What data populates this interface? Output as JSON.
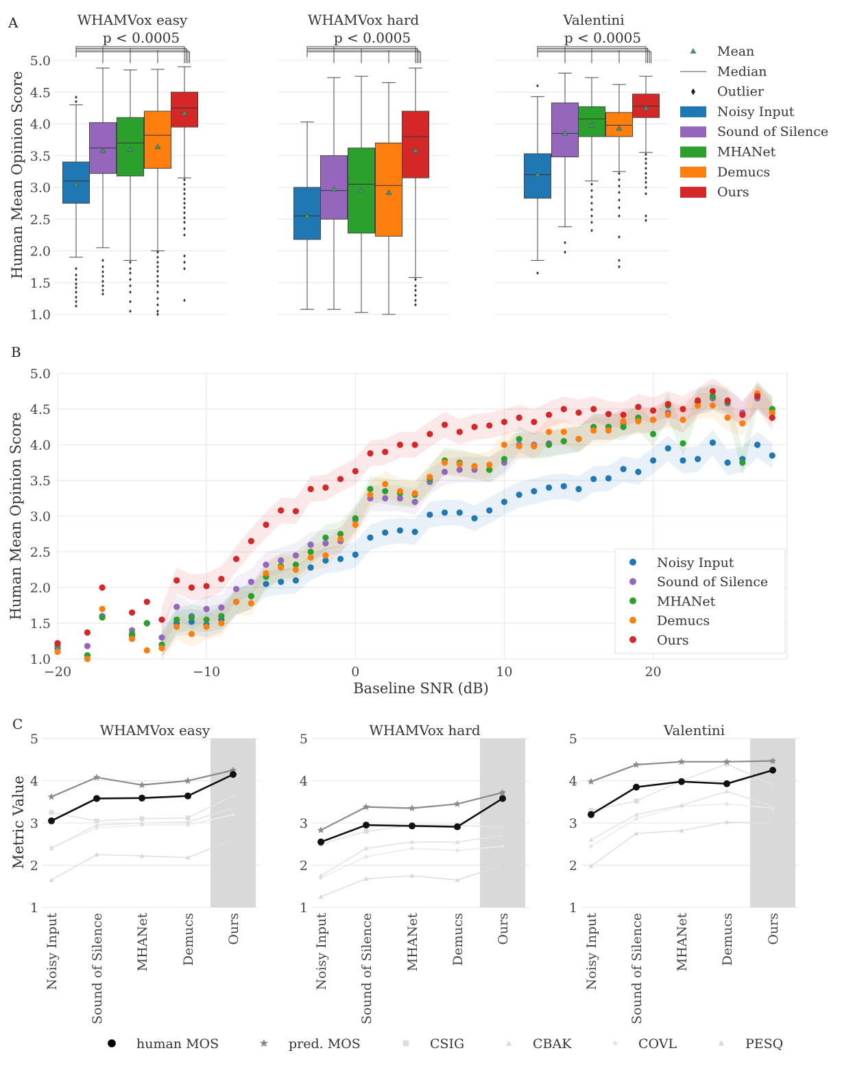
{
  "panels": {
    "A": "A",
    "B": "B",
    "C": "C"
  },
  "colors": {
    "Noisy Input": "#1f77b4",
    "Sound of Silence": "#9467bd",
    "MHANet": "#2ca02c",
    "Demucs": "#ff7f0e",
    "Ours": "#d62728"
  },
  "chart_data": [
    {
      "id": "A",
      "type": "box",
      "ylabel": "Human Mean Opinion Score",
      "ylim": [
        1.0,
        5.0
      ],
      "yticks": [
        "1.0",
        "1.5",
        "2.0",
        "2.5",
        "3.0",
        "3.5",
        "4.0",
        "4.5",
        "5.0"
      ],
      "methods": [
        "Noisy Input",
        "Sound of Silence",
        "MHANet",
        "Demucs",
        "Ours"
      ],
      "significance": "p < 0.0005",
      "legend": [
        "Mean",
        "Median",
        "Outlier",
        "Noisy Input",
        "Sound of Silence",
        "MHANet",
        "Demucs",
        "Ours"
      ],
      "subplots": [
        {
          "title": "WHAMVox easy",
          "boxes": [
            {
              "q1": 2.75,
              "median": 3.1,
              "q3": 3.4,
              "wlo": 1.9,
              "whi": 4.3,
              "mean": 3.05,
              "outliers": [
                4.42,
                4.35,
                1.72,
                1.62,
                1.55,
                1.48,
                1.42,
                1.35,
                1.27,
                1.2,
                1.13
              ]
            },
            {
              "q1": 3.22,
              "median": 3.62,
              "q3": 4.02,
              "wlo": 2.05,
              "whi": 4.88,
              "mean": 3.58,
              "outliers": [
                1.85,
                1.75,
                1.67,
                1.6,
                1.52,
                1.45,
                1.38,
                1.32
              ]
            },
            {
              "q1": 3.18,
              "median": 3.7,
              "q3": 4.1,
              "wlo": 1.85,
              "whi": 4.85,
              "mean": 3.6,
              "outliers": [
                1.82,
                1.72,
                1.65,
                1.55,
                1.45,
                1.35,
                1.2,
                1.05
              ]
            },
            {
              "q1": 3.3,
              "median": 3.82,
              "q3": 4.2,
              "wlo": 2.0,
              "whi": 4.86,
              "mean": 3.64,
              "outliers": [
                1.98,
                1.9,
                1.82,
                1.75,
                1.68,
                1.6,
                1.52,
                1.45,
                1.35,
                1.25,
                1.15,
                1.05,
                1.0
              ]
            },
            {
              "q1": 3.95,
              "median": 4.25,
              "q3": 4.5,
              "wlo": 3.15,
              "whi": 4.9,
              "mean": 4.17,
              "outliers": [
                3.12,
                3.05,
                2.97,
                2.9,
                2.82,
                2.75,
                2.68,
                2.6,
                2.52,
                2.45,
                2.35,
                2.25,
                1.92,
                1.82,
                1.72,
                1.22
              ]
            }
          ]
        },
        {
          "title": "WHAMVox hard",
          "boxes": [
            {
              "q1": 2.18,
              "median": 2.55,
              "q3": 3.0,
              "wlo": 1.08,
              "whi": 4.03,
              "mean": 2.55,
              "outliers": []
            },
            {
              "q1": 2.5,
              "median": 2.95,
              "q3": 3.5,
              "wlo": 1.08,
              "whi": 4.73,
              "mean": 2.97,
              "outliers": []
            },
            {
              "q1": 2.28,
              "median": 3.05,
              "q3": 3.62,
              "wlo": 1.03,
              "whi": 4.75,
              "mean": 2.95,
              "outliers": []
            },
            {
              "q1": 2.23,
              "median": 3.03,
              "q3": 3.7,
              "wlo": 1.0,
              "whi": 4.65,
              "mean": 2.92,
              "outliers": []
            },
            {
              "q1": 3.15,
              "median": 3.8,
              "q3": 4.2,
              "wlo": 1.58,
              "whi": 4.88,
              "mean": 3.58,
              "outliers": [
                1.55,
                1.45,
                1.38,
                1.3,
                1.22,
                1.15
              ]
            }
          ]
        },
        {
          "title": "Valentini",
          "boxes": [
            {
              "q1": 2.83,
              "median": 3.2,
              "q3": 3.53,
              "wlo": 1.85,
              "whi": 4.43,
              "mean": 3.2,
              "outliers": [
                4.6,
                1.65
              ]
            },
            {
              "q1": 3.48,
              "median": 3.85,
              "q3": 4.33,
              "wlo": 2.38,
              "whi": 4.8,
              "mean": 3.85,
              "outliers": [
                2.13,
                1.98
              ]
            },
            {
              "q1": 3.8,
              "median": 4.08,
              "q3": 4.27,
              "wlo": 3.1,
              "whi": 4.73,
              "mean": 3.98,
              "outliers": [
                3.05,
                2.95,
                2.85,
                2.75,
                2.65,
                2.55,
                2.45,
                2.32
              ]
            },
            {
              "q1": 3.8,
              "median": 3.98,
              "q3": 4.18,
              "wlo": 3.25,
              "whi": 4.62,
              "mean": 3.93,
              "outliers": [
                3.22,
                3.12,
                3.02,
                2.92,
                2.8,
                2.68,
                2.55,
                2.22,
                1.85,
                1.75
              ]
            },
            {
              "q1": 4.1,
              "median": 4.28,
              "q3": 4.47,
              "wlo": 3.55,
              "whi": 4.75,
              "mean": 4.25,
              "outliers": [
                3.52,
                3.45,
                3.38,
                3.3,
                3.22,
                3.15,
                3.08,
                3.0,
                2.9,
                2.55,
                2.48
              ]
            }
          ]
        }
      ]
    },
    {
      "id": "B",
      "type": "scatter",
      "xlabel": "Baseline SNR (dB)",
      "ylabel": "Human Mean Opinion Score",
      "xlim": [
        -20,
        29
      ],
      "ylim": [
        1.0,
        5.0
      ],
      "xticks": [
        "−20",
        "−10",
        "0",
        "10",
        "20"
      ],
      "xtick_values": [
        -20,
        -10,
        0,
        10,
        20
      ],
      "yticks": [
        "1.0",
        "1.5",
        "2.0",
        "2.5",
        "3.0",
        "3.5",
        "4.0",
        "4.5",
        "5.0"
      ],
      "legend": [
        "Noisy Input",
        "Sound of Silence",
        "MHANet",
        "Demucs",
        "Ours"
      ],
      "legend_position": "lower-right",
      "x": [
        -20,
        -18,
        -17,
        -15,
        -14,
        -13,
        -12,
        -11,
        -10,
        -9,
        -8,
        -7,
        -6,
        -5,
        -4,
        -3,
        -2,
        -1,
        0,
        1,
        2,
        3,
        4,
        5,
        6,
        7,
        8,
        9,
        10,
        11,
        12,
        13,
        14,
        15,
        16,
        17,
        18,
        19,
        20,
        21,
        22,
        23,
        24,
        25,
        26,
        27,
        28
      ],
      "series": [
        {
          "name": "Noisy Input",
          "values": [
            1.15,
            1.05,
            1.6,
            1.32,
            1.5,
            1.2,
            1.5,
            1.52,
            1.48,
            1.55,
            1.8,
            1.88,
            2.05,
            2.08,
            2.1,
            2.28,
            2.38,
            2.4,
            2.46,
            2.7,
            2.77,
            2.8,
            2.78,
            3.02,
            3.05,
            3.05,
            2.97,
            3.08,
            3.2,
            3.3,
            3.35,
            3.4,
            3.42,
            3.38,
            3.52,
            3.53,
            3.66,
            3.62,
            3.78,
            3.95,
            3.78,
            3.8,
            4.03,
            3.75,
            3.8,
            4.0,
            3.85
          ]
        },
        {
          "name": "Sound of Silence",
          "values": [
            1.18,
            1.18,
            1.6,
            1.4,
            1.5,
            1.3,
            1.73,
            1.6,
            1.7,
            1.72,
            1.98,
            2.08,
            2.32,
            2.38,
            2.45,
            2.6,
            2.62,
            2.65,
            2.95,
            3.25,
            3.25,
            3.25,
            3.2,
            3.48,
            3.62,
            3.65,
            3.65,
            3.65,
            3.75,
            4.0,
            4.0,
            4.02,
            4.05,
            4.08,
            4.25,
            4.25,
            4.3,
            4.35,
            4.35,
            4.45,
            4.35,
            4.6,
            4.65,
            4.58,
            4.45,
            4.65,
            4.5
          ]
        },
        {
          "name": "MHANet",
          "values": [
            1.2,
            1.05,
            1.58,
            1.35,
            1.5,
            1.2,
            1.55,
            1.58,
            1.55,
            1.6,
            1.8,
            1.88,
            2.15,
            2.3,
            2.32,
            2.5,
            2.7,
            2.75,
            2.97,
            3.38,
            3.35,
            3.32,
            3.3,
            3.52,
            3.78,
            3.75,
            3.7,
            3.65,
            3.8,
            4.08,
            3.98,
            4.0,
            4.05,
            4.08,
            4.25,
            4.25,
            4.25,
            4.38,
            4.15,
            4.55,
            4.02,
            4.6,
            4.68,
            4.6,
            3.75,
            4.7,
            4.5
          ]
        },
        {
          "name": "Demucs",
          "values": [
            1.1,
            1.0,
            1.7,
            1.28,
            1.12,
            1.15,
            1.45,
            1.35,
            1.45,
            1.5,
            1.8,
            1.78,
            2.2,
            2.28,
            2.25,
            2.42,
            2.45,
            2.68,
            2.88,
            3.3,
            3.45,
            3.35,
            3.32,
            3.55,
            3.75,
            3.73,
            3.7,
            3.72,
            4.0,
            3.98,
            3.98,
            4.18,
            4.18,
            4.08,
            4.2,
            4.2,
            4.33,
            4.33,
            4.35,
            4.42,
            4.35,
            4.55,
            4.55,
            4.38,
            4.3,
            4.72,
            4.45
          ]
        },
        {
          "name": "Ours",
          "values": [
            1.22,
            1.37,
            2.0,
            1.65,
            1.8,
            1.55,
            2.1,
            2.0,
            2.02,
            2.12,
            2.4,
            2.65,
            2.88,
            3.08,
            3.07,
            3.38,
            3.4,
            3.52,
            3.63,
            3.88,
            3.9,
            4.0,
            4.0,
            4.15,
            4.28,
            4.18,
            4.25,
            4.27,
            4.32,
            4.38,
            4.32,
            4.42,
            4.5,
            4.45,
            4.5,
            4.43,
            4.42,
            4.53,
            4.48,
            4.57,
            4.5,
            4.62,
            4.75,
            4.62,
            4.42,
            4.68,
            4.38
          ]
        }
      ]
    },
    {
      "id": "C",
      "type": "line",
      "ylabel": "Metric Value",
      "ylim": [
        1,
        5
      ],
      "yticks": [
        "1",
        "2",
        "3",
        "4",
        "5"
      ],
      "categories": [
        "Noisy Input",
        "Sound of Silence",
        "MHANet",
        "Demucs",
        "Ours"
      ],
      "legend": [
        "human MOS",
        "pred. MOS",
        "CSIG",
        "CBAK",
        "COVL",
        "PESQ"
      ],
      "legend_position": "bottom",
      "subplots": [
        {
          "title": "WHAMVox easy",
          "series": [
            {
              "name": "human MOS",
              "values": [
                3.05,
                3.58,
                3.59,
                3.64,
                4.15
              ]
            },
            {
              "name": "pred. MOS",
              "values": [
                3.62,
                4.08,
                3.9,
                4.0,
                4.25
              ]
            },
            {
              "name": "CSIG",
              "values": [
                3.25,
                3.05,
                3.1,
                3.12,
                3.65
              ]
            },
            {
              "name": "CBAK",
              "values": [
                2.4,
                2.95,
                3.0,
                3.02,
                3.35
              ]
            },
            {
              "name": "COVL",
              "values": [
                2.42,
                2.88,
                2.95,
                2.95,
                3.2
              ]
            },
            {
              "name": "PESQ",
              "values": [
                1.65,
                2.25,
                2.22,
                2.18,
                2.6
              ]
            }
          ]
        },
        {
          "title": "WHAMVox hard",
          "series": [
            {
              "name": "human MOS",
              "values": [
                2.55,
                2.95,
                2.93,
                2.91,
                3.58
              ]
            },
            {
              "name": "pred. MOS",
              "values": [
                2.83,
                3.38,
                3.35,
                3.45,
                3.72
              ]
            },
            {
              "name": "CSIG",
              "values": [
                2.5,
                2.8,
                2.95,
                2.95,
                2.9
              ]
            },
            {
              "name": "CBAK",
              "values": [
                1.75,
                2.4,
                2.55,
                2.55,
                2.7
              ]
            },
            {
              "name": "COVL",
              "values": [
                1.7,
                2.2,
                2.4,
                2.35,
                2.45
              ]
            },
            {
              "name": "PESQ",
              "values": [
                1.25,
                1.68,
                1.75,
                1.65,
                2.0
              ]
            }
          ]
        },
        {
          "title": "Valentini",
          "series": [
            {
              "name": "human MOS",
              "values": [
                3.2,
                3.85,
                3.98,
                3.93,
                4.25
              ]
            },
            {
              "name": "pred. MOS",
              "values": [
                3.98,
                4.38,
                4.45,
                4.45,
                4.47
              ]
            },
            {
              "name": "CSIG",
              "values": [
                3.3,
                3.52,
                4.0,
                4.4,
                3.9
              ]
            },
            {
              "name": "CBAK",
              "values": [
                2.6,
                3.2,
                3.42,
                3.75,
                3.4
              ]
            },
            {
              "name": "COVL",
              "values": [
                2.45,
                3.1,
                3.4,
                3.45,
                3.35
              ]
            },
            {
              "name": "PESQ",
              "values": [
                1.98,
                2.75,
                2.82,
                3.02,
                3.0
              ]
            }
          ]
        }
      ]
    }
  ]
}
